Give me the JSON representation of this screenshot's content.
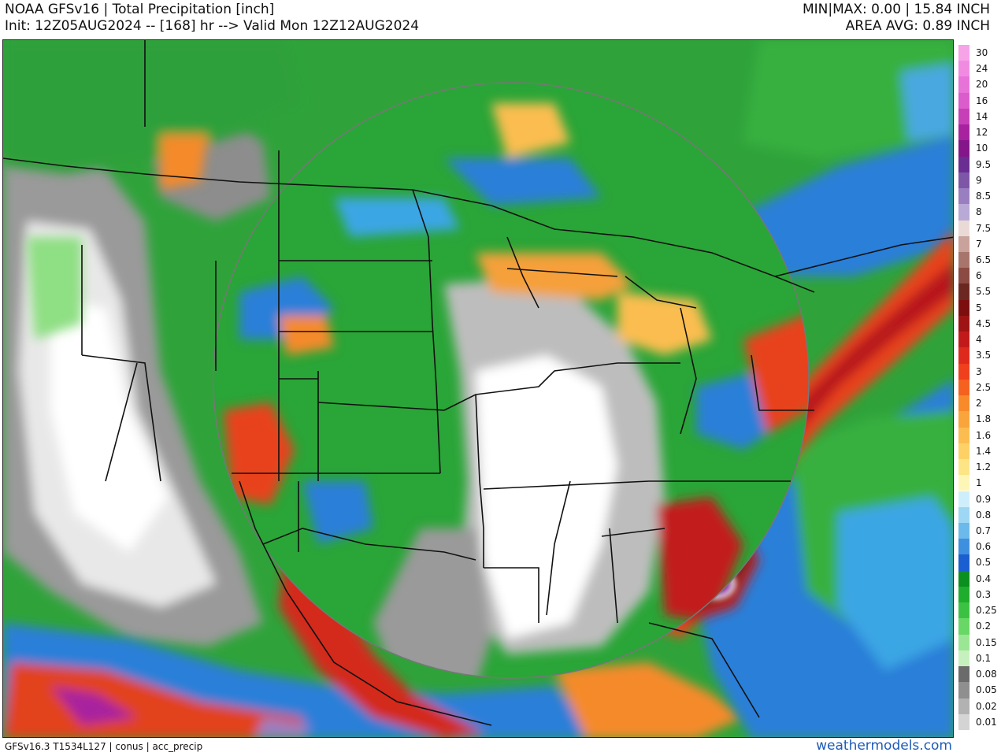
{
  "header": {
    "title": "NOAA GFSv16 |  Total Precipitation [inch]",
    "init_line": "Init: 12Z05AUG2024 -- [168] hr --> Valid Mon 12Z12AUG2024",
    "minmax": "MIN|MAX: 0.00 | 15.84 INCH",
    "area_avg": "AREA AVG: 0.89 INCH"
  },
  "footer": {
    "model_info": "GFSv16.3 T1534L127 | conus | acc_precip",
    "site": "weathermodels.com"
  },
  "legend": {
    "levels": [
      {
        "label": "30",
        "color": "#f6a3e8"
      },
      {
        "label": "24",
        "color": "#f18be2"
      },
      {
        "label": "20",
        "color": "#e773d9"
      },
      {
        "label": "16",
        "color": "#db5ccc"
      },
      {
        "label": "14",
        "color": "#c63fb7"
      },
      {
        "label": "12",
        "color": "#a8229f"
      },
      {
        "label": "10",
        "color": "#84168a"
      },
      {
        "label": "9.5",
        "color": "#6a2d91"
      },
      {
        "label": "9",
        "color": "#7e56a8"
      },
      {
        "label": "8.5",
        "color": "#9a7fc0"
      },
      {
        "label": "8",
        "color": "#b9a9d6"
      },
      {
        "label": "7.5",
        "color": "#eadad6"
      },
      {
        "label": "7",
        "color": "#c9a39b"
      },
      {
        "label": "6.5",
        "color": "#a8756c"
      },
      {
        "label": "6",
        "color": "#8b4a42"
      },
      {
        "label": "5.5",
        "color": "#6b2822"
      },
      {
        "label": "5",
        "color": "#7d0e10"
      },
      {
        "label": "4.5",
        "color": "#9e1414"
      },
      {
        "label": "4",
        "color": "#c21a1a"
      },
      {
        "label": "3.5",
        "color": "#de2a1d"
      },
      {
        "label": "3",
        "color": "#ef3f1c"
      },
      {
        "label": "2.5",
        "color": "#f5611e"
      },
      {
        "label": "2",
        "color": "#f88a2a"
      },
      {
        "label": "1.8",
        "color": "#f9a53b"
      },
      {
        "label": "1.6",
        "color": "#fbbd4f"
      },
      {
        "label": "1.4",
        "color": "#fdd166"
      },
      {
        "label": "1.2",
        "color": "#fde586"
      },
      {
        "label": "1",
        "color": "#fdf6b7"
      },
      {
        "label": "0.9",
        "color": "#cfeefb"
      },
      {
        "label": "0.8",
        "color": "#9ed7f4"
      },
      {
        "label": "0.7",
        "color": "#6cb9ec"
      },
      {
        "label": "0.6",
        "color": "#3f8fdf"
      },
      {
        "label": "0.5",
        "color": "#1b5ed0"
      },
      {
        "label": "0.4",
        "color": "#0b8f1f"
      },
      {
        "label": "0.3",
        "color": "#1fad2d"
      },
      {
        "label": "0.25",
        "color": "#3cc243"
      },
      {
        "label": "0.2",
        "color": "#69d766"
      },
      {
        "label": "0.15",
        "color": "#9be694"
      },
      {
        "label": "0.1",
        "color": "#c7f0bf"
      },
      {
        "label": "0.08",
        "color": "#6b6b6b"
      },
      {
        "label": "0.05",
        "color": "#8f8f8f"
      },
      {
        "label": "0.02",
        "color": "#b2b2b2"
      },
      {
        "label": "0.01",
        "color": "#d4d4d4"
      }
    ]
  }
}
